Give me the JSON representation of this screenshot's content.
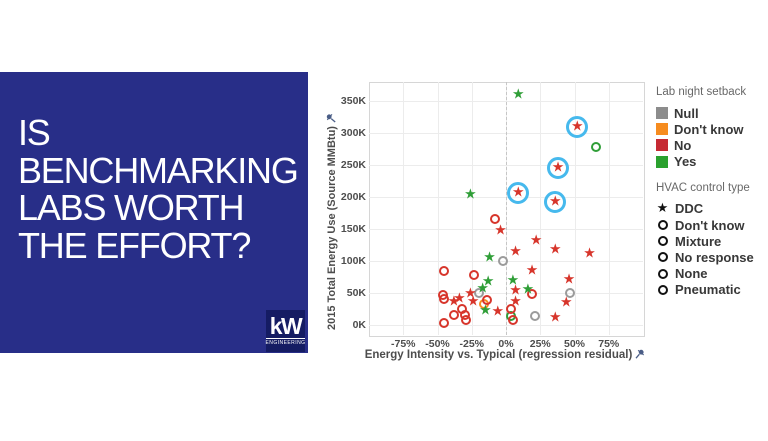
{
  "slide": {
    "title_lines": [
      "IS",
      "BENCHMARKING",
      "LABS WORTH",
      "THE EFFORT?"
    ],
    "box_color": "#282e88",
    "logo": {
      "name": "kW",
      "tagline": "ENGINEERING",
      "bg_color": "#151c63"
    }
  },
  "chart_data": {
    "type": "scatter",
    "title": "",
    "xlabel": "Energy Intensity vs. Typical (regression residual)",
    "ylabel": "2015 Total Energy Use (Source MMBtu)",
    "x_unit": "%",
    "y_unit": "thousand MMBtu",
    "xlim": [
      -100,
      100
    ],
    "ylim": [
      -15,
      380
    ],
    "x_tick_values": [
      -75,
      -50,
      -25,
      0,
      25,
      50,
      75
    ],
    "x_tick_labels": [
      "-75%",
      "-50%",
      "-25%",
      "0%",
      "25%",
      "50%",
      "75%"
    ],
    "y_tick_values": [
      0,
      50,
      100,
      150,
      200,
      250,
      300,
      350
    ],
    "y_tick_labels": [
      "0K",
      "50K",
      "100K",
      "150K",
      "200K",
      "250K",
      "300K",
      "350K"
    ],
    "grid": true,
    "zero_reference_line": 0,
    "legend_position": "right",
    "marker_meaning": {
      "star": "DDC HVAC control",
      "circle": "non-DDC HVAC control",
      "color": "Lab night setback"
    },
    "color_map": {
      "No": "#d7352b",
      "Yes": "#2f9e37",
      "Don't know": "#f68c1f",
      "Null": "#9b9b9b"
    },
    "highlight_ring_color": "#46b9ed",
    "points": [
      {
        "x": 52,
        "y": 310,
        "setback": "No",
        "marker": "star",
        "ring": true
      },
      {
        "x": 38,
        "y": 245,
        "setback": "No",
        "marker": "star",
        "ring": true
      },
      {
        "x": 9,
        "y": 207,
        "setback": "No",
        "marker": "star",
        "ring": true
      },
      {
        "x": 36,
        "y": 193,
        "setback": "No",
        "marker": "star",
        "ring": true
      },
      {
        "x": 9,
        "y": 360,
        "setback": "Yes",
        "marker": "star"
      },
      {
        "x": -26,
        "y": 204,
        "setback": "Yes",
        "marker": "star"
      },
      {
        "x": -12,
        "y": 105,
        "setback": "Yes",
        "marker": "star"
      },
      {
        "x": 5,
        "y": 69,
        "setback": "Yes",
        "marker": "star"
      },
      {
        "x": -13,
        "y": 67,
        "setback": "Yes",
        "marker": "star"
      },
      {
        "x": -17,
        "y": 57,
        "setback": "Yes",
        "marker": "star"
      },
      {
        "x": 16,
        "y": 55,
        "setback": "Yes",
        "marker": "star"
      },
      {
        "x": -15,
        "y": 23,
        "setback": "Yes",
        "marker": "star"
      },
      {
        "x": 66,
        "y": 278,
        "setback": "Yes",
        "marker": "circle"
      },
      {
        "x": 4,
        "y": 14,
        "setback": "Yes",
        "marker": "circle"
      },
      {
        "x": -2,
        "y": 101,
        "setback": "Null",
        "marker": "circle"
      },
      {
        "x": -20,
        "y": 51,
        "setback": "Null",
        "marker": "circle"
      },
      {
        "x": 47,
        "y": 50,
        "setback": "Null",
        "marker": "circle"
      },
      {
        "x": 21,
        "y": 14,
        "setback": "Null",
        "marker": "circle"
      },
      {
        "x": -16,
        "y": 34,
        "setback": "Don't know",
        "marker": "circle"
      },
      {
        "x": -8,
        "y": 166,
        "setback": "No",
        "marker": "circle"
      },
      {
        "x": -45,
        "y": 85,
        "setback": "No",
        "marker": "circle"
      },
      {
        "x": -23,
        "y": 79,
        "setback": "No",
        "marker": "circle"
      },
      {
        "x": 19,
        "y": 49,
        "setback": "No",
        "marker": "circle"
      },
      {
        "x": -46,
        "y": 48,
        "setback": "No",
        "marker": "circle"
      },
      {
        "x": -45,
        "y": 41,
        "setback": "No",
        "marker": "circle"
      },
      {
        "x": -14,
        "y": 40,
        "setback": "No",
        "marker": "circle"
      },
      {
        "x": 4,
        "y": 25,
        "setback": "No",
        "marker": "circle"
      },
      {
        "x": -32,
        "y": 25,
        "setback": "No",
        "marker": "circle"
      },
      {
        "x": -38,
        "y": 16,
        "setback": "No",
        "marker": "circle"
      },
      {
        "x": -30,
        "y": 16,
        "setback": "No",
        "marker": "circle"
      },
      {
        "x": -29,
        "y": 9,
        "setback": "No",
        "marker": "circle"
      },
      {
        "x": 5,
        "y": 8,
        "setback": "No",
        "marker": "circle"
      },
      {
        "x": -45,
        "y": 4,
        "setback": "No",
        "marker": "circle"
      },
      {
        "x": -4,
        "y": 148,
        "setback": "No",
        "marker": "star"
      },
      {
        "x": 22,
        "y": 132,
        "setback": "No",
        "marker": "star"
      },
      {
        "x": 36,
        "y": 118,
        "setback": "No",
        "marker": "star"
      },
      {
        "x": 7,
        "y": 115,
        "setback": "No",
        "marker": "star"
      },
      {
        "x": 61,
        "y": 111,
        "setback": "No",
        "marker": "star"
      },
      {
        "x": 19,
        "y": 85,
        "setback": "No",
        "marker": "star"
      },
      {
        "x": 46,
        "y": 71,
        "setback": "No",
        "marker": "star"
      },
      {
        "x": 7,
        "y": 53,
        "setback": "No",
        "marker": "star"
      },
      {
        "x": -26,
        "y": 49,
        "setback": "No",
        "marker": "star"
      },
      {
        "x": -34,
        "y": 41,
        "setback": "No",
        "marker": "star"
      },
      {
        "x": -38,
        "y": 37,
        "setback": "No",
        "marker": "star"
      },
      {
        "x": -24,
        "y": 37,
        "setback": "No",
        "marker": "star"
      },
      {
        "x": 7,
        "y": 37,
        "setback": "No",
        "marker": "star"
      },
      {
        "x": 44,
        "y": 35,
        "setback": "No",
        "marker": "star"
      },
      {
        "x": -6,
        "y": 21,
        "setback": "No",
        "marker": "star"
      },
      {
        "x": 36,
        "y": 12,
        "setback": "No",
        "marker": "star"
      }
    ]
  },
  "legend": {
    "groups": [
      {
        "title": "Lab night setback",
        "items": [
          {
            "label": "Null",
            "color": "#8c8c8c"
          },
          {
            "label": "Don't know",
            "color": "#f68c1f"
          },
          {
            "label": "No",
            "color": "#c62a33"
          },
          {
            "label": "Yes",
            "color": "#2aa12e"
          }
        ]
      },
      {
        "title": "HVAC control type",
        "items": [
          {
            "label": "DDC",
            "marker": "star"
          },
          {
            "label": "Don't know",
            "marker": "circle"
          },
          {
            "label": "Mixture",
            "marker": "circle"
          },
          {
            "label": "No response",
            "marker": "circle"
          },
          {
            "label": "None",
            "marker": "circle"
          },
          {
            "label": "Pneumatic",
            "marker": "circle"
          }
        ]
      }
    ]
  }
}
